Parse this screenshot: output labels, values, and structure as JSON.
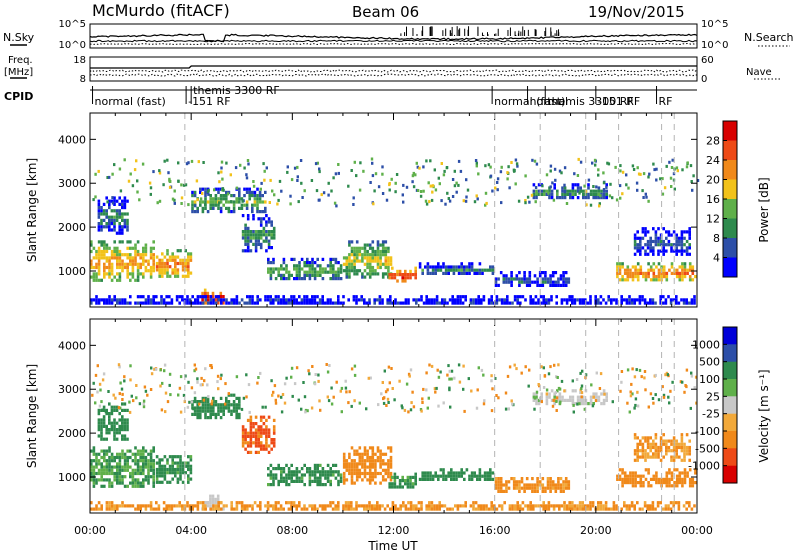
{
  "header": {
    "station": "McMurdo (fitACF)",
    "beam": "Beam 06",
    "date": "19/Nov/2015"
  },
  "nsky_panel": {
    "left_label": "N.Sky",
    "right_label": "N.Search",
    "left_ticks": [
      "10^5",
      "10^0"
    ],
    "right_ticks": [
      "10^5",
      "10^0"
    ]
  },
  "freq_panel": {
    "left_label_1": "Freq.",
    "left_label_2": "[MHz]",
    "right_label": "Nave",
    "left_ticks": [
      "18",
      "8"
    ],
    "right_ticks": [
      "60",
      "0"
    ]
  },
  "cpid": {
    "label": "CPID",
    "modes": [
      {
        "text": "normal (fast)",
        "hour": 0.1
      },
      {
        "text": "themis 3300 RF",
        "hour": 4.0
      },
      {
        "text": "-151 RF",
        "hour": 3.8
      },
      {
        "text": "normal (fast)",
        "hour": 15.9
      },
      {
        "text": "normal",
        "hour": 17.3
      },
      {
        "text": "themis 3300 RF",
        "hour": 18.0
      },
      {
        "text": "-151 RF",
        "hour": 20.0
      },
      {
        "text": "RF",
        "hour": 22.4
      }
    ]
  },
  "colors": {
    "power": [
      "#0000ff",
      "#2d4fa8",
      "#2e8a4d",
      "#5fb04a",
      "#f2c21a",
      "#f0891a",
      "#ee4a16",
      "#d80000"
    ],
    "velocity": [
      "#d80000",
      "#ee4a16",
      "#f0891a",
      "#f2a93a",
      "#c8c8c8",
      "#5fb04a",
      "#2e8a4d",
      "#2d4fa8",
      "#0000d8"
    ]
  },
  "chart_data": [
    {
      "type": "heatmap",
      "name": "power",
      "xlabel": "",
      "ylabel": "Slant Range [km]",
      "xlim": [
        0,
        24
      ],
      "ylim": [
        180,
        4600
      ],
      "x_ticks": [
        "00:00",
        "04:00",
        "08:00",
        "12:00",
        "16:00",
        "20:00",
        "00:00"
      ],
      "y_ticks": [
        1000,
        2000,
        3000,
        4000
      ],
      "colorbar": {
        "label": "Power [dB]",
        "ticks": [
          4,
          8,
          12,
          16,
          20,
          24,
          28
        ],
        "range": [
          0,
          32
        ]
      },
      "echo_bands": [
        {
          "t0": 0.0,
          "t1": 2.6,
          "r0": 700,
          "r1": 1700,
          "value": 22
        },
        {
          "t0": 0.3,
          "t1": 1.6,
          "r0": 1800,
          "r1": 2700,
          "value": 10
        },
        {
          "t0": 2.6,
          "t1": 4.1,
          "r0": 800,
          "r1": 1500,
          "value": 24
        },
        {
          "t0": 4.4,
          "t1": 5.4,
          "r0": 200,
          "r1": 600,
          "value": 30
        },
        {
          "t0": 4.0,
          "t1": 7.0,
          "r0": 2300,
          "r1": 2900,
          "value": 14
        },
        {
          "t0": 6.0,
          "t1": 7.4,
          "r0": 1400,
          "r1": 2300,
          "value": 12
        },
        {
          "t0": 7.0,
          "t1": 10.0,
          "r0": 750,
          "r1": 1300,
          "value": 14
        },
        {
          "t0": 10.0,
          "t1": 12.0,
          "r0": 800,
          "r1": 1700,
          "value": 18
        },
        {
          "t0": 11.8,
          "t1": 13.0,
          "r0": 700,
          "r1": 1100,
          "value": 28
        },
        {
          "t0": 13.0,
          "t1": 16.0,
          "r0": 900,
          "r1": 1200,
          "value": 10
        },
        {
          "t0": 16.0,
          "t1": 19.0,
          "r0": 600,
          "r1": 1000,
          "value": 8
        },
        {
          "t0": 17.5,
          "t1": 20.5,
          "r0": 2600,
          "r1": 3000,
          "value": 12
        },
        {
          "t0": 20.8,
          "t1": 24.0,
          "r0": 700,
          "r1": 1200,
          "value": 24
        },
        {
          "t0": 21.5,
          "t1": 23.8,
          "r0": 1300,
          "r1": 2000,
          "value": 8
        },
        {
          "t0": 0.0,
          "t1": 24.0,
          "r0": 200,
          "r1": 450,
          "value": 6
        }
      ]
    },
    {
      "type": "heatmap",
      "name": "velocity",
      "xlabel": "Time UT",
      "ylabel": "Slant Range [km]",
      "xlim": [
        0,
        24
      ],
      "ylim": [
        180,
        4600
      ],
      "x_ticks": [
        "00:00",
        "04:00",
        "08:00",
        "12:00",
        "16:00",
        "20:00",
        "00:00"
      ],
      "y_ticks": [
        1000,
        2000,
        3000,
        4000
      ],
      "colorbar": {
        "label": "Velocity [m s⁻¹]",
        "ticks": [
          "1000",
          "500",
          "100",
          "25",
          "-25",
          "-100",
          "-500",
          "-1000"
        ]
      },
      "echo_bands": [
        {
          "t0": 0.0,
          "t1": 2.6,
          "r0": 700,
          "r1": 1700,
          "value": 100
        },
        {
          "t0": 0.3,
          "t1": 1.6,
          "r0": 1800,
          "r1": 2700,
          "value": 200
        },
        {
          "t0": 2.6,
          "t1": 4.1,
          "r0": 800,
          "r1": 1500,
          "value": 150
        },
        {
          "t0": 4.4,
          "t1": 5.4,
          "r0": 200,
          "r1": 600,
          "value": 0
        },
        {
          "t0": 4.0,
          "t1": 6.0,
          "r0": 2300,
          "r1": 2900,
          "value": 200
        },
        {
          "t0": 6.0,
          "t1": 7.4,
          "r0": 1500,
          "r1": 2400,
          "value": -600
        },
        {
          "t0": 7.0,
          "t1": 10.0,
          "r0": 750,
          "r1": 1300,
          "value": 150
        },
        {
          "t0": 10.0,
          "t1": 12.0,
          "r0": 800,
          "r1": 1700,
          "value": -200
        },
        {
          "t0": 11.8,
          "t1": 13.0,
          "r0": 700,
          "r1": 1100,
          "value": 150
        },
        {
          "t0": 13.0,
          "t1": 16.0,
          "r0": 900,
          "r1": 1200,
          "value": 200
        },
        {
          "t0": 16.0,
          "t1": 19.0,
          "r0": 600,
          "r1": 1000,
          "value": -150
        },
        {
          "t0": 17.5,
          "t1": 20.5,
          "r0": 2600,
          "r1": 3000,
          "value": 0
        },
        {
          "t0": 20.8,
          "t1": 24.0,
          "r0": 700,
          "r1": 1200,
          "value": -300
        },
        {
          "t0": 21.5,
          "t1": 23.8,
          "r0": 1300,
          "r1": 2000,
          "value": -100
        },
        {
          "t0": 0.0,
          "t1": 24.0,
          "r0": 200,
          "r1": 450,
          "value": -120
        }
      ]
    }
  ],
  "mode_change_hours": [
    3.75,
    16.0,
    17.8,
    19.6,
    20.9,
    22.6,
    23.1
  ]
}
